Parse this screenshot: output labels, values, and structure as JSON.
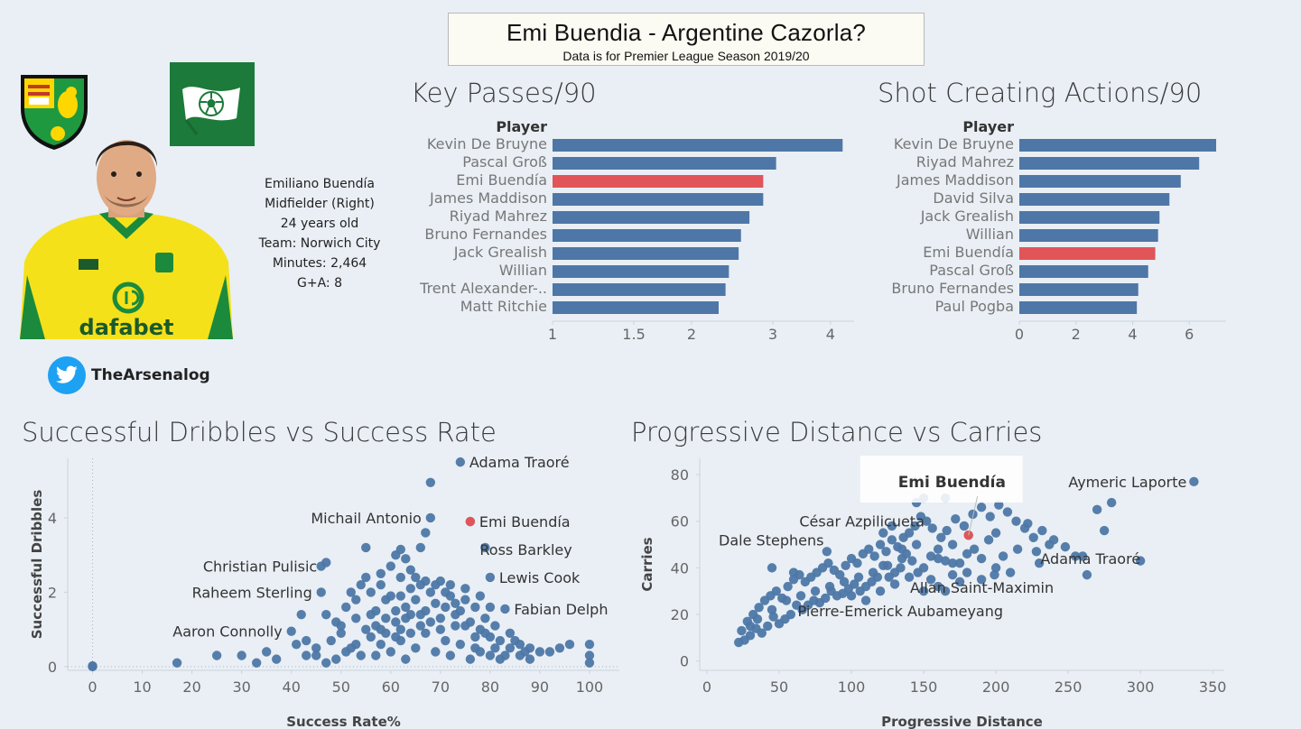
{
  "header": {
    "title": "Emi Buendia - Argentine Cazorla?",
    "subtitle": "Data is for Premier League Season 2019/20"
  },
  "player": {
    "name": "Emiliano Buendía",
    "position": "Midfielder (Right)",
    "age": "24 years old",
    "team": "Team: Norwich City",
    "minutes": "Minutes: 2,464",
    "ga": "G+A: 8",
    "shirt_sponsor": "dafabet"
  },
  "social": {
    "handle": "TheArsenalog"
  },
  "colors": {
    "bar": "#4e77a7",
    "highlight": "#e15559",
    "dot": "#4e77a7",
    "background": "#e9eff5"
  },
  "chart_data": [
    {
      "type": "bar",
      "title": "Key Passes/90",
      "column_header": "Player",
      "categories": [
        "Kevin De Bruyne",
        "Pascal Groß",
        "Emi Buendía",
        "James Maddison",
        "Riyad Mahrez",
        "Bruno Fernandes",
        "Jack Grealish",
        "Willian",
        "Trent Alexander-..",
        "Matt Ritchie"
      ],
      "values": [
        4.25,
        3.05,
        2.86,
        2.86,
        2.67,
        2.56,
        2.53,
        2.41,
        2.37,
        2.29
      ],
      "highlight": "Emi Buendía",
      "scale": "log",
      "xticks": [
        1,
        1.5,
        2,
        3,
        4
      ],
      "xtick_labels": [
        "1",
        "1.5",
        "2",
        "3",
        "4"
      ],
      "xlim": [
        1,
        4.5
      ]
    },
    {
      "type": "bar",
      "title": "Shot Creating Actions/90",
      "column_header": "Player",
      "categories": [
        "Kevin De Bruyne",
        "Riyad Mahrez",
        "James Maddison",
        "David Silva",
        "Jack Grealish",
        "Willian",
        "Emi Buendía",
        "Pascal Groß",
        "Bruno Fernandes",
        "Paul Pogba"
      ],
      "values": [
        6.95,
        6.35,
        5.7,
        5.3,
        4.95,
        4.9,
        4.8,
        4.55,
        4.2,
        4.15
      ],
      "highlight": "Emi Buendía",
      "xticks": [
        0,
        2,
        4,
        6
      ],
      "xtick_labels": [
        "0",
        "2",
        "4",
        "6"
      ],
      "xlim": [
        0,
        7.3
      ]
    },
    {
      "type": "scatter",
      "title": "Successful Dribbles vs Success Rate",
      "xlabel": "Success Rate%",
      "ylabel": "Successful Dribbles",
      "xlim": [
        -5,
        106
      ],
      "ylim": [
        -0.1,
        5.6
      ],
      "xticks": [
        0,
        10,
        20,
        30,
        40,
        50,
        60,
        70,
        80,
        90,
        100
      ],
      "yticks": [
        0,
        2,
        4
      ],
      "highlight": {
        "x": 76,
        "y": 3.9
      },
      "labels": [
        {
          "text": "Adama Traoré",
          "x": 74,
          "y": 5.5
        },
        {
          "text": "Michail Antonio",
          "x": 68,
          "y": 4.0
        },
        {
          "text": "Emi Buendía",
          "x": 76,
          "y": 3.9
        },
        {
          "text": "Ross Barkley",
          "x": 79,
          "y": 3.2
        },
        {
          "text": "Christian Pulisic",
          "x": 47,
          "y": 2.7
        },
        {
          "text": "Lewis Cook",
          "x": 80,
          "y": 2.4
        },
        {
          "text": "Raheem Sterling",
          "x": 46,
          "y": 2.0
        },
        {
          "text": "Fabian Delph",
          "x": 83,
          "y": 1.55
        },
        {
          "text": "Aaron Connolly",
          "x": 40,
          "y": 0.95
        }
      ],
      "points": [
        [
          74,
          5.5
        ],
        [
          68,
          4.95
        ],
        [
          68,
          4.0
        ],
        [
          76,
          3.9
        ],
        [
          67,
          3.6
        ],
        [
          79,
          3.2
        ],
        [
          66,
          3.2
        ],
        [
          62,
          3.15
        ],
        [
          61,
          3.0
        ],
        [
          55,
          3.2
        ],
        [
          47,
          2.8
        ],
        [
          46,
          2.7
        ],
        [
          80,
          2.4
        ],
        [
          46,
          2.0
        ],
        [
          58,
          2.5
        ],
        [
          62,
          2.4
        ],
        [
          55,
          2.4
        ],
        [
          64,
          2.6
        ],
        [
          83,
          1.55
        ],
        [
          40,
          0.95
        ],
        [
          42,
          1.4
        ],
        [
          49,
          1.2
        ],
        [
          51,
          1.6
        ],
        [
          53,
          1.3
        ],
        [
          57,
          1.5
        ],
        [
          59,
          1.8
        ],
        [
          60,
          1.9
        ],
        [
          61,
          1.2
        ],
        [
          63,
          1.6
        ],
        [
          64,
          1.4
        ],
        [
          65,
          1.8
        ],
        [
          66,
          1.1
        ],
        [
          67,
          1.5
        ],
        [
          68,
          2.0
        ],
        [
          69,
          1.7
        ],
        [
          70,
          1.3
        ],
        [
          71,
          1.6
        ],
        [
          72,
          1.9
        ],
        [
          73,
          1.1
        ],
        [
          74,
          1.5
        ],
        [
          75,
          1.8
        ],
        [
          76,
          1.2
        ],
        [
          77,
          1.6
        ],
        [
          78,
          1.0
        ],
        [
          79,
          1.3
        ],
        [
          80,
          0.8
        ],
        [
          81,
          1.1
        ],
        [
          82,
          0.7
        ],
        [
          84,
          0.9
        ],
        [
          86,
          0.6
        ],
        [
          88,
          0.5
        ],
        [
          90,
          0.4
        ],
        [
          92,
          0.4
        ],
        [
          94,
          0.5
        ],
        [
          96,
          0.6
        ],
        [
          100,
          0.6
        ],
        [
          100,
          0.1
        ],
        [
          100,
          0.3
        ],
        [
          17,
          0.1
        ],
        [
          25,
          0.3
        ],
        [
          30,
          0.3
        ],
        [
          33,
          0.1
        ],
        [
          35,
          0.4
        ],
        [
          37,
          0.2
        ],
        [
          41,
          0.6
        ],
        [
          43,
          0.3
        ],
        [
          45,
          0.5
        ],
        [
          47,
          0.1
        ],
        [
          48,
          0.7
        ],
        [
          50,
          0.9
        ],
        [
          52,
          0.5
        ],
        [
          54,
          0.3
        ],
        [
          56,
          0.8
        ],
        [
          58,
          0.6
        ],
        [
          60,
          0.4
        ],
        [
          62,
          0.7
        ],
        [
          63,
          0.2
        ],
        [
          65,
          0.5
        ],
        [
          67,
          0.9
        ],
        [
          69,
          0.4
        ],
        [
          71,
          0.7
        ],
        [
          72,
          0.3
        ],
        [
          74,
          0.6
        ],
        [
          76,
          0.2
        ],
        [
          77,
          0.8
        ],
        [
          78,
          0.4
        ],
        [
          80,
          0.3
        ],
        [
          82,
          0.2
        ],
        [
          84,
          0.5
        ],
        [
          86,
          0.3
        ],
        [
          88,
          0.2
        ],
        [
          0,
          0.02
        ],
        [
          0,
          0.0
        ],
        [
          53,
          1.8
        ],
        [
          56,
          2.0
        ],
        [
          58,
          2.2
        ],
        [
          59,
          1.3
        ],
        [
          61,
          1.5
        ],
        [
          62,
          1.0
        ],
        [
          64,
          2.1
        ],
        [
          66,
          2.2
        ],
        [
          70,
          2.3
        ],
        [
          72,
          2.2
        ],
        [
          55,
          1.0
        ],
        [
          57,
          1.1
        ],
        [
          60,
          2.7
        ],
        [
          63,
          2.9
        ],
        [
          65,
          2.4
        ],
        [
          59,
          0.9
        ],
        [
          51,
          0.4
        ],
        [
          49,
          0.2
        ],
        [
          53,
          0.6
        ],
        [
          57,
          0.3
        ],
        [
          61,
          0.8
        ],
        [
          63,
          1.3
        ],
        [
          66,
          1.4
        ],
        [
          68,
          1.2
        ],
        [
          70,
          1.0
        ],
        [
          73,
          1.4
        ],
        [
          75,
          1.1
        ],
        [
          77,
          0.5
        ],
        [
          79,
          0.9
        ],
        [
          81,
          0.5
        ],
        [
          83,
          0.3
        ],
        [
          85,
          0.7
        ],
        [
          87,
          0.4
        ],
        [
          45,
          0.3
        ],
        [
          43,
          0.7
        ],
        [
          47,
          1.4
        ],
        [
          50,
          1.1
        ],
        [
          52,
          2.0
        ],
        [
          54,
          2.2
        ],
        [
          56,
          1.4
        ],
        [
          58,
          1.0
        ],
        [
          62,
          1.9
        ],
        [
          64,
          0.9
        ],
        [
          67,
          2.3
        ],
        [
          69,
          2.2
        ],
        [
          71,
          2.0
        ],
        [
          73,
          1.7
        ],
        [
          75,
          2.1
        ],
        [
          78,
          1.9
        ],
        [
          80,
          1.6
        ]
      ]
    },
    {
      "type": "scatter",
      "title": "Progressive Distance vs Carries",
      "xlabel": "Progressive Distance",
      "ylabel": "Carries",
      "xlim": [
        -5,
        358
      ],
      "ylim": [
        -4,
        87
      ],
      "xticks": [
        0,
        50,
        100,
        150,
        200,
        250,
        300,
        350
      ],
      "yticks": [
        0,
        20,
        40,
        60,
        80
      ],
      "highlight": {
        "x": 181,
        "y": 54
      },
      "tooltip": "Emi Buendía",
      "labels": [
        {
          "text": "Aymeric Laporte",
          "x": 337,
          "y": 77
        },
        {
          "text": "César Azpilicueta",
          "x": 158,
          "y": 60
        },
        {
          "text": "Dale Stephens",
          "x": 84,
          "y": 52
        },
        {
          "text": "Adama Traoré",
          "x": 300,
          "y": 44
        },
        {
          "text": "Allan Saint-Maximin",
          "x": 235,
          "y": 37
        },
        {
          "text": "Pierre-Emerick Aubameyang",
          "x": 137,
          "y": 27
        }
      ],
      "points": [
        [
          337,
          77
        ],
        [
          300,
          43
        ],
        [
          275,
          56
        ],
        [
          263,
          37
        ],
        [
          260,
          45
        ],
        [
          237,
          50
        ],
        [
          228,
          47
        ],
        [
          222,
          59
        ],
        [
          210,
          38
        ],
        [
          205,
          45
        ],
        [
          199,
          37
        ],
        [
          190,
          35
        ],
        [
          181,
          54
        ],
        [
          180,
          38
        ],
        [
          175,
          42
        ],
        [
          170,
          50
        ],
        [
          165,
          43
        ],
        [
          160,
          48
        ],
        [
          155,
          45
        ],
        [
          150,
          40
        ],
        [
          146,
          38
        ],
        [
          142,
          43
        ],
        [
          138,
          46
        ],
        [
          134,
          40
        ],
        [
          130,
          38
        ],
        [
          126,
          36
        ],
        [
          122,
          41
        ],
        [
          118,
          36
        ],
        [
          114,
          34
        ],
        [
          110,
          32
        ],
        [
          106,
          30
        ],
        [
          102,
          33
        ],
        [
          98,
          31
        ],
        [
          94,
          29
        ],
        [
          90,
          28
        ],
        [
          86,
          30
        ],
        [
          82,
          27
        ],
        [
          78,
          25
        ],
        [
          74,
          26
        ],
        [
          70,
          24
        ],
        [
          66,
          22
        ],
        [
          62,
          24
        ],
        [
          58,
          20
        ],
        [
          54,
          18
        ],
        [
          50,
          16
        ],
        [
          46,
          19
        ],
        [
          42,
          15
        ],
        [
          38,
          12
        ],
        [
          34,
          14
        ],
        [
          30,
          11
        ],
        [
          26,
          9
        ],
        [
          22,
          8
        ],
        [
          24,
          13
        ],
        [
          28,
          17
        ],
        [
          32,
          20
        ],
        [
          36,
          23
        ],
        [
          40,
          26
        ],
        [
          44,
          28
        ],
        [
          48,
          30
        ],
        [
          52,
          27
        ],
        [
          56,
          32
        ],
        [
          60,
          35
        ],
        [
          64,
          37
        ],
        [
          68,
          34
        ],
        [
          72,
          36
        ],
        [
          76,
          38
        ],
        [
          80,
          40
        ],
        [
          84,
          42
        ],
        [
          88,
          39
        ],
        [
          92,
          37
        ],
        [
          96,
          41
        ],
        [
          100,
          44
        ],
        [
          104,
          42
        ],
        [
          108,
          46
        ],
        [
          112,
          48
        ],
        [
          116,
          45
        ],
        [
          120,
          50
        ],
        [
          124,
          47
        ],
        [
          128,
          52
        ],
        [
          132,
          49
        ],
        [
          136,
          53
        ],
        [
          140,
          55
        ],
        [
          144,
          58
        ],
        [
          148,
          62
        ],
        [
          152,
          60
        ],
        [
          156,
          57
        ],
        [
          162,
          53
        ],
        [
          166,
          56
        ],
        [
          172,
          61
        ],
        [
          178,
          58
        ],
        [
          184,
          63
        ],
        [
          190,
          66
        ],
        [
          196,
          62
        ],
        [
          202,
          67
        ],
        [
          208,
          64
        ],
        [
          214,
          60
        ],
        [
          220,
          57
        ],
        [
          226,
          53
        ],
        [
          232,
          56
        ],
        [
          240,
          52
        ],
        [
          248,
          49
        ],
        [
          255,
          45
        ],
        [
          270,
          65
        ],
        [
          280,
          68
        ],
        [
          155,
          35
        ],
        [
          160,
          32
        ],
        [
          165,
          30
        ],
        [
          170,
          37
        ],
        [
          175,
          34
        ],
        [
          185,
          48
        ],
        [
          195,
          52
        ],
        [
          145,
          50
        ],
        [
          135,
          44
        ],
        [
          125,
          41
        ],
        [
          115,
          38
        ],
        [
          105,
          36
        ],
        [
          95,
          34
        ],
        [
          85,
          32
        ],
        [
          75,
          30
        ],
        [
          65,
          28
        ],
        [
          55,
          26
        ],
        [
          45,
          22
        ],
        [
          35,
          18
        ],
        [
          30,
          15
        ],
        [
          145,
          68
        ],
        [
          150,
          70
        ],
        [
          165,
          70
        ],
        [
          45,
          40
        ],
        [
          60,
          38
        ],
        [
          83,
          47
        ],
        [
          200,
          55
        ],
        [
          215,
          48
        ],
        [
          230,
          42
        ],
        [
          100,
          28
        ],
        [
          110,
          26
        ],
        [
          120,
          30
        ],
        [
          130,
          33
        ],
        [
          140,
          36
        ],
        [
          150,
          30
        ],
        [
          160,
          44
        ],
        [
          170,
          42
        ],
        [
          180,
          46
        ],
        [
          190,
          44
        ],
        [
          200,
          40
        ],
        [
          122,
          55
        ],
        [
          128,
          58
        ],
        [
          135,
          48
        ]
      ]
    }
  ]
}
